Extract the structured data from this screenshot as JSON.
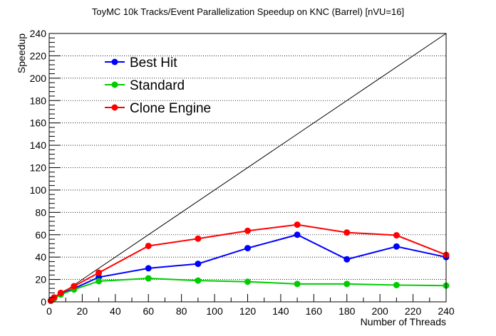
{
  "chart_data": {
    "type": "line",
    "title": "ToyMC 10k Tracks/Event Parallelization Speedup on KNC (Barrel) [nVU=16]",
    "xlabel": "Number of Threads",
    "ylabel": "Speedup",
    "xlim": [
      0,
      240
    ],
    "ylim": [
      0,
      240
    ],
    "xticks": [
      0,
      20,
      40,
      60,
      80,
      100,
      120,
      140,
      160,
      180,
      200,
      220,
      240
    ],
    "yticks": [
      0,
      20,
      40,
      60,
      80,
      100,
      120,
      140,
      160,
      180,
      200,
      220,
      240
    ],
    "grid": "horizontal dotted",
    "legend_position": "top-left",
    "reference_line": {
      "x": [
        0,
        240
      ],
      "y": [
        0,
        240
      ],
      "color": "#000000"
    },
    "series": [
      {
        "name": "Best Hit",
        "color": "#0000ff",
        "x": [
          1,
          3,
          7,
          15,
          30,
          60,
          90,
          120,
          150,
          180,
          210,
          240
        ],
        "y": [
          1,
          3.5,
          7,
          12,
          22,
          30,
          34,
          48,
          60,
          38,
          49.5,
          40
        ]
      },
      {
        "name": "Standard",
        "color": "#00cc00",
        "x": [
          1,
          3,
          7,
          15,
          30,
          60,
          90,
          120,
          150,
          180,
          210,
          240
        ],
        "y": [
          1,
          3,
          6.5,
          11,
          18.5,
          21,
          19,
          18,
          16,
          16,
          15,
          14.5
        ]
      },
      {
        "name": "Clone Engine",
        "color": "#ff0000",
        "x": [
          1,
          3,
          7,
          15,
          30,
          60,
          90,
          120,
          150,
          180,
          210,
          240
        ],
        "y": [
          1,
          4,
          8,
          14,
          26,
          50,
          56.5,
          63.5,
          69,
          62,
          59.5,
          42
        ]
      }
    ]
  }
}
